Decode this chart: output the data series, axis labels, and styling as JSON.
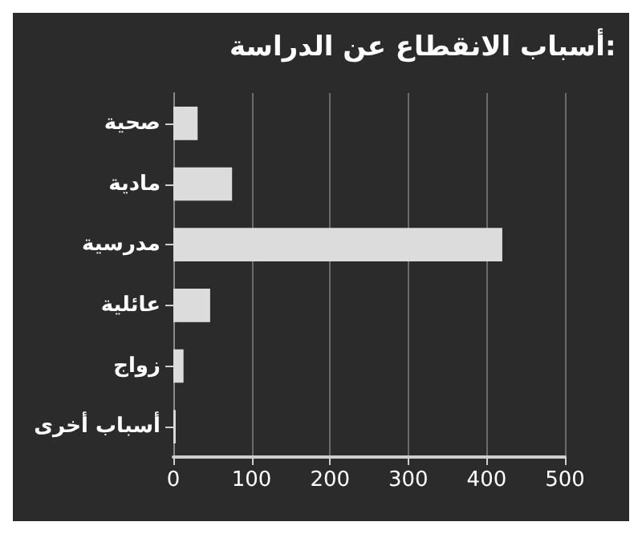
{
  "chart_data": {
    "type": "bar",
    "orientation": "horizontal",
    "title": "أسباب الانقطاع عن الدراسة:",
    "categories": [
      "صحية",
      "مادية",
      "مدرسية",
      "عائلية",
      "زواج",
      "أسباب أخرى"
    ],
    "values": [
      31,
      75,
      420,
      47,
      13,
      3
    ],
    "color": "#dcdcdc",
    "xlim": [
      0,
      500
    ],
    "xticks": [
      0,
      100,
      200,
      300,
      400,
      500
    ],
    "grid": "x"
  }
}
